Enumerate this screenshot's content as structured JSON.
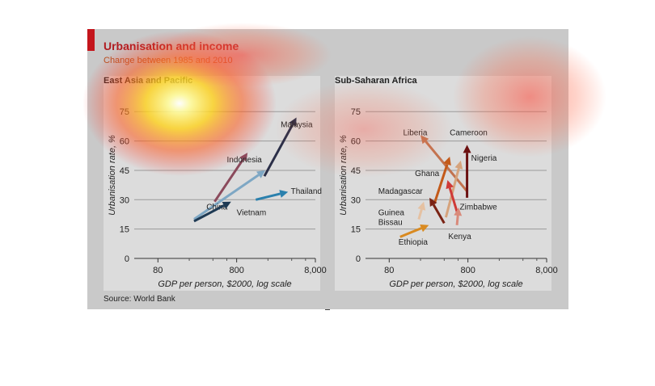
{
  "figure": {
    "title": "Urbanisation and income",
    "subtitle": "Change between 1985 and 2010",
    "source": "Source: World Bank"
  },
  "chart_data": [
    {
      "type": "line",
      "title": "East Asia and Pacific",
      "xlabel": "GDP per person, $2000, log scale",
      "ylabel": "Urbanisation rate, %",
      "x_scale": "log",
      "xlim": [
        40,
        8000
      ],
      "ylim": [
        0,
        85
      ],
      "xticks": [
        80,
        800,
        8000
      ],
      "xtick_labels": [
        "80",
        "800",
        "8,000"
      ],
      "yticks": [
        0,
        15,
        30,
        45,
        60,
        75
      ],
      "grid": "horizontal",
      "series": [
        {
          "name": "China",
          "color": "#7ea7c4",
          "x": [
            230,
            1850
          ],
          "y": [
            20,
            45
          ],
          "label_anchor": [
            330,
            25
          ]
        },
        {
          "name": "Vietnam",
          "color": "#1e3a54",
          "x": [
            230,
            680
          ],
          "y": [
            19,
            29
          ],
          "label_anchor": [
            800,
            22
          ]
        },
        {
          "name": "Thailand",
          "color": "#2a80ad",
          "x": [
            1400,
            3600
          ],
          "y": [
            30,
            34
          ],
          "label_anchor": [
            3900,
            33
          ]
        },
        {
          "name": "Indonesia",
          "color": "#8b4a5c",
          "x": [
            420,
            1100
          ],
          "y": [
            29,
            54
          ],
          "label_anchor": [
            600,
            49
          ]
        },
        {
          "name": "Malaysia",
          "color": "#2b2f48",
          "x": [
            1800,
            4600
          ],
          "y": [
            42,
            72
          ],
          "label_anchor": [
            2900,
            67
          ]
        }
      ]
    },
    {
      "type": "line",
      "title": "Sub-Saharan Africa",
      "xlabel": "GDP per person, $2000, log scale",
      "ylabel": "Urbanisation rate, %",
      "x_scale": "log",
      "xlim": [
        40,
        8000
      ],
      "ylim": [
        0,
        85
      ],
      "xticks": [
        80,
        800,
        8000
      ],
      "xtick_labels": [
        "80",
        "800",
        "8,000"
      ],
      "yticks": [
        0,
        15,
        30,
        45,
        60,
        75
      ],
      "grid": "horizontal",
      "series": [
        {
          "name": "Liberia",
          "color": "#c2734f",
          "x": [
            790,
            200
          ],
          "y": [
            34,
            63
          ],
          "label_anchor": [
            120,
            63
          ]
        },
        {
          "name": "Cameroon",
          "color": "#d6a37c",
          "x": [
            420,
            650
          ],
          "y": [
            21,
            50
          ],
          "label_anchor": [
            470,
            63
          ]
        },
        {
          "name": "Nigeria",
          "color": "#6b1111",
          "x": [
            780,
            780
          ],
          "y": [
            31,
            58
          ],
          "label_anchor": [
            880,
            50
          ]
        },
        {
          "name": "Ghana",
          "color": "#c35a1a",
          "x": [
            300,
            470
          ],
          "y": [
            28,
            52
          ],
          "label_anchor": [
            170,
            42
          ]
        },
        {
          "name": "Zimbabwe",
          "color": "#cf3a37",
          "x": [
            600,
            440
          ],
          "y": [
            22,
            40
          ],
          "label_anchor": [
            630,
            25
          ]
        },
        {
          "name": "Madagascar",
          "color": "#7a2314",
          "x": [
            400,
            260
          ],
          "y": [
            18,
            31
          ],
          "label_anchor": [
            58,
            33
          ]
        },
        {
          "name": "Guinea Bissau",
          "color": "#e5c1a2",
          "x": [
            190,
            220
          ],
          "y": [
            20,
            29
          ],
          "label_anchor": [
            58,
            22
          ]
        },
        {
          "name": "Kenya",
          "color": "#d98a7a",
          "x": [
            580,
            610
          ],
          "y": [
            17,
            26
          ],
          "label_anchor": [
            450,
            10
          ]
        },
        {
          "name": "Ethiopia",
          "color": "#d98a20",
          "x": [
            110,
            255
          ],
          "y": [
            11,
            17
          ],
          "label_anchor": [
            105,
            7
          ]
        }
      ]
    }
  ]
}
